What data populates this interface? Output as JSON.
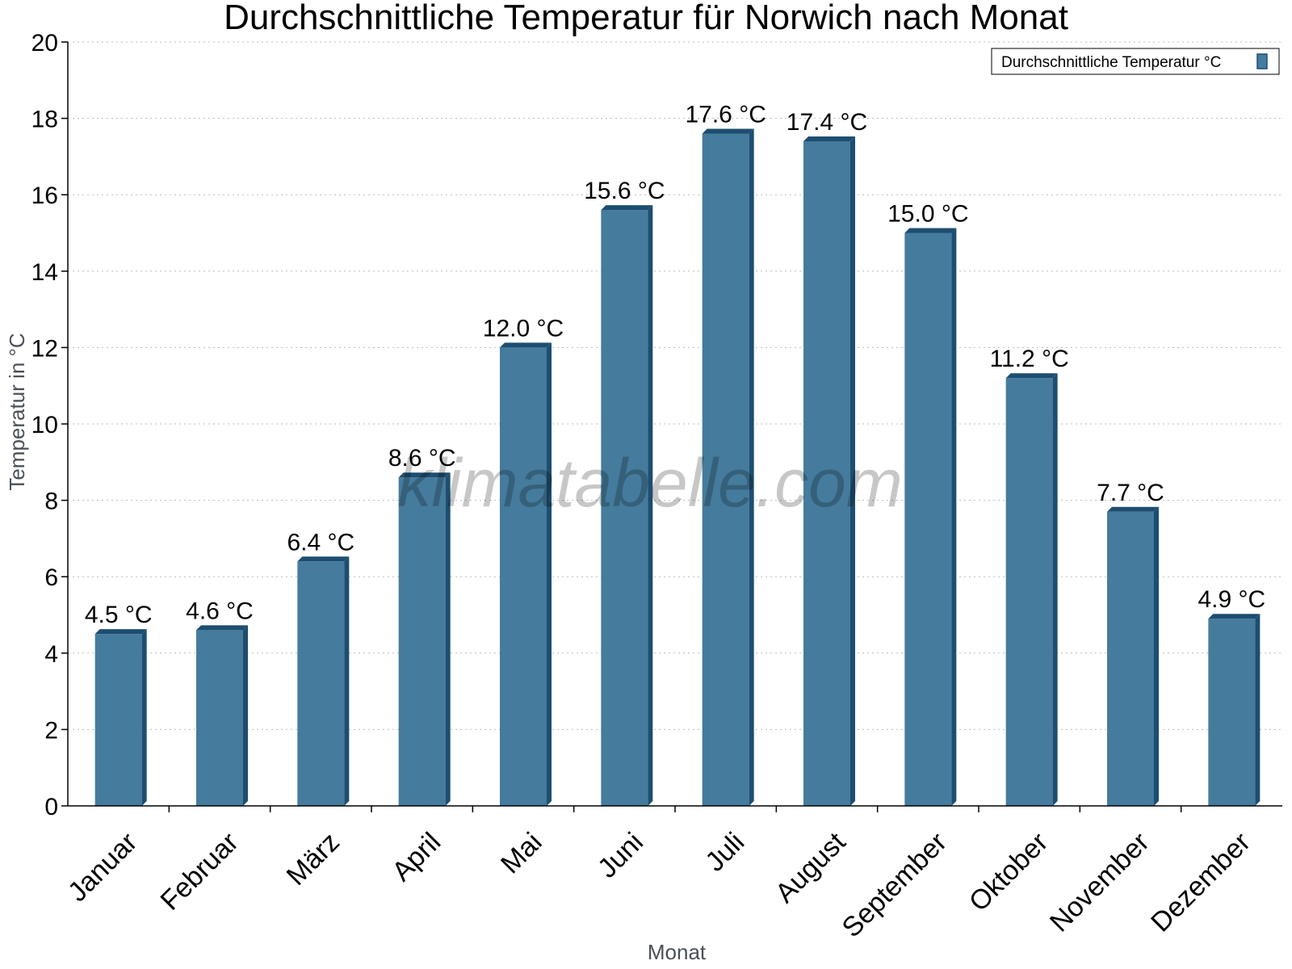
{
  "chart_data": {
    "type": "bar",
    "title": "Durchschnittliche Temperatur für Norwich nach Monat",
    "xlabel": "Monat",
    "ylabel": "Temperatur in °C",
    "ylim": [
      0,
      20
    ],
    "yticks": [
      "0",
      "2",
      "4",
      "6",
      "8",
      "10",
      "12",
      "14",
      "16",
      "18",
      "20"
    ],
    "grid": "horizontal-dotted",
    "legend_position": "top-right",
    "categories": [
      "Januar",
      "Februar",
      "März",
      "April",
      "Mai",
      "Juni",
      "Juli",
      "August",
      "September",
      "Oktober",
      "November",
      "Dezember"
    ],
    "series": [
      {
        "name": "Durchschnittliche Temperatur °C",
        "values": [
          4.5,
          4.6,
          6.4,
          8.6,
          12.0,
          15.6,
          17.6,
          17.4,
          15.0,
          11.2,
          7.7,
          4.9
        ],
        "labels": [
          "4.5 °C",
          "4.6 °C",
          "6.4 °C",
          "8.6 °C",
          "12.0 °C",
          "15.6 °C",
          "17.6 °C",
          "17.4 °C",
          "15.0 °C",
          "11.2 °C",
          "7.7 °C",
          "4.9 °C"
        ],
        "color": "#457b9d",
        "edge_color": "#1d4e70"
      }
    ],
    "watermark": "klimatabelle.com"
  }
}
